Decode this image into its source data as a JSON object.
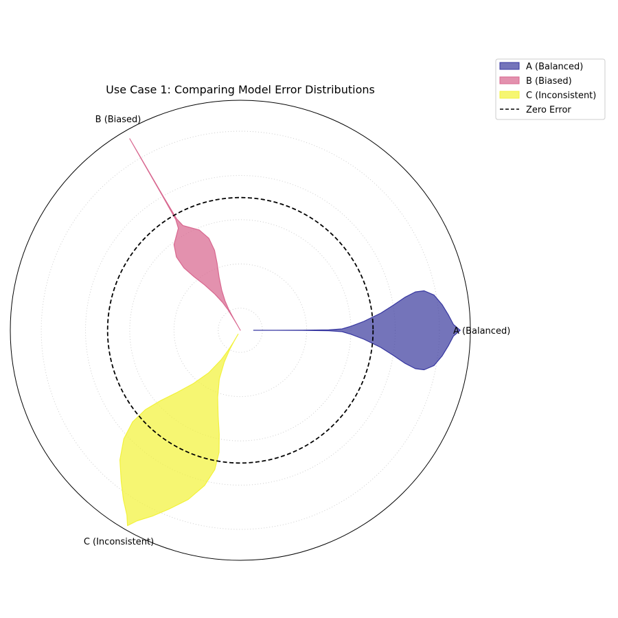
{
  "chart_data": {
    "type": "radar-violin",
    "title": "Use Case 1: Comparing Model Error Distributions",
    "rlim": [
      -3,
      2.2
    ],
    "zero_line": {
      "value": 0,
      "label": "Zero Error",
      "color": "#000000",
      "style": "dashed"
    },
    "rgrid": {
      "values": [
        -2.5,
        -1.5,
        -0.5,
        0.5,
        1.5
      ],
      "style": "dotted",
      "color": "#cccccc"
    },
    "legend_position": "top-right",
    "series": [
      {
        "name": "A (Balanced)",
        "angle_deg": 0,
        "color": "#3f3f9f",
        "edge": "#3535a0",
        "r_range": [
          -2.7,
          1.97
        ],
        "profile": [
          [
            -2.7,
            0.0
          ],
          [
            -2.2,
            0.001
          ],
          [
            -1.6,
            0.002
          ],
          [
            -1.0,
            0.01
          ],
          [
            -0.7,
            0.03
          ],
          [
            -0.5,
            0.08
          ],
          [
            -0.2,
            0.16
          ],
          [
            0.2,
            0.27
          ],
          [
            0.5,
            0.36
          ],
          [
            0.8,
            0.44
          ],
          [
            1.05,
            0.48
          ],
          [
            1.25,
            0.47
          ],
          [
            1.45,
            0.4
          ],
          [
            1.6,
            0.28
          ],
          [
            1.72,
            0.16
          ],
          [
            1.82,
            0.06
          ],
          [
            1.97,
            0.0
          ]
        ]
      },
      {
        "name": "B (Biased)",
        "angle_deg": 120,
        "color": "#d8678f",
        "edge": "#d8678f",
        "r_range": [
          -3.0,
          2.0
        ],
        "profile": [
          [
            -3.0,
            0.0
          ],
          [
            -2.85,
            0.004
          ],
          [
            -2.7,
            0.012
          ],
          [
            -2.45,
            0.04
          ],
          [
            -2.25,
            0.1
          ],
          [
            -2.0,
            0.2
          ],
          [
            -1.7,
            0.32
          ],
          [
            -1.4,
            0.42
          ],
          [
            -1.1,
            0.47
          ],
          [
            -0.8,
            0.43
          ],
          [
            -0.55,
            0.3
          ],
          [
            -0.4,
            0.14
          ],
          [
            -0.3,
            0.05
          ],
          [
            -0.1,
            0.01
          ],
          [
            0.5,
            0.003
          ],
          [
            1.5,
            0.001
          ],
          [
            2.0,
            0.0
          ]
        ]
      },
      {
        "name": "C (Inconsistent)",
        "angle_deg": 240,
        "color": "#f2f23c",
        "edge": "#f2f23c",
        "r_range": [
          -2.9,
          2.1
        ],
        "profile": [
          [
            -2.9,
            0.0
          ],
          [
            -2.7,
            0.01
          ],
          [
            -2.5,
            0.04
          ],
          [
            -2.2,
            0.12
          ],
          [
            -1.8,
            0.26
          ],
          [
            -1.4,
            0.44
          ],
          [
            -1.0,
            0.6
          ],
          [
            -0.6,
            0.72
          ],
          [
            -0.2,
            0.78
          ],
          [
            0.2,
            0.76
          ],
          [
            0.6,
            0.66
          ],
          [
            1.0,
            0.5
          ],
          [
            1.35,
            0.32
          ],
          [
            1.65,
            0.18
          ],
          [
            1.9,
            0.06
          ],
          [
            2.1,
            0.0
          ]
        ]
      }
    ]
  }
}
